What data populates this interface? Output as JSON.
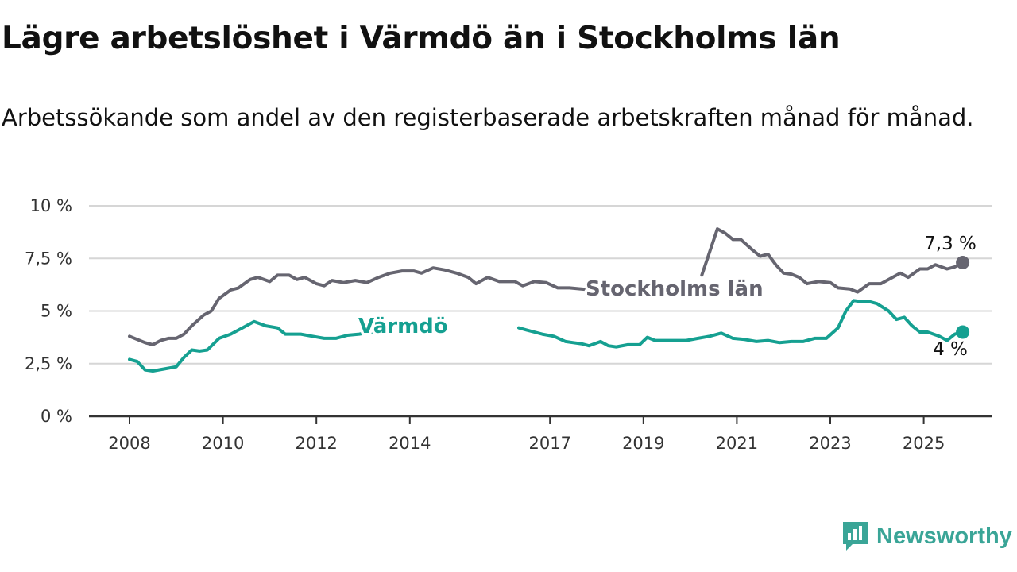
{
  "header": {
    "title": "Lägre arbetslöshet i Värmdö än i Stockholms län",
    "subtitle": "Arbetssökande som andel av den registerbaserade arbetskraften månad för månad."
  },
  "brand": {
    "name": "Newsworthy",
    "color": "#3aa597",
    "icon": "newsworthy-logo-icon"
  },
  "chart_data": {
    "type": "line",
    "x_range": [
      "2008-01",
      "2025-12"
    ],
    "ylim": [
      0,
      10
    ],
    "grid": true,
    "y_ticks": [
      {
        "value": 0,
        "label": "0 %"
      },
      {
        "value": 2.5,
        "label": "2,5 %"
      },
      {
        "value": 5,
        "label": "5 %"
      },
      {
        "value": 7.5,
        "label": "7,5 %"
      },
      {
        "value": 10,
        "label": "10 %"
      }
    ],
    "x_ticks": [
      {
        "value": "2008-01",
        "label": "2008"
      },
      {
        "value": "2010-01",
        "label": "2010"
      },
      {
        "value": "2012-01",
        "label": "2012"
      },
      {
        "value": "2014-01",
        "label": "2014"
      },
      {
        "value": "2017-01",
        "label": "2017"
      },
      {
        "value": "2019-01",
        "label": "2019"
      },
      {
        "value": "2021-01",
        "label": "2021"
      },
      {
        "value": "2023-01",
        "label": "2023"
      },
      {
        "value": "2025-01",
        "label": "2025"
      }
    ],
    "series": [
      {
        "name": "Stockholms län",
        "color": "#666570",
        "end_label": "7,3 %",
        "points": [
          [
            "2008-01",
            3.8
          ],
          [
            "2008-05",
            3.5
          ],
          [
            "2008-07",
            3.4
          ],
          [
            "2008-09",
            3.6
          ],
          [
            "2008-11",
            3.7
          ],
          [
            "2009-01",
            3.7
          ],
          [
            "2009-03",
            3.9
          ],
          [
            "2009-05",
            4.3
          ],
          [
            "2009-08",
            4.8
          ],
          [
            "2009-10",
            5.0
          ],
          [
            "2009-12",
            5.6
          ],
          [
            "2010-03",
            6.0
          ],
          [
            "2010-05",
            6.1
          ],
          [
            "2010-08",
            6.5
          ],
          [
            "2010-10",
            6.6
          ],
          [
            "2011-01",
            6.4
          ],
          [
            "2011-03",
            6.7
          ],
          [
            "2011-06",
            6.7
          ],
          [
            "2011-08",
            6.5
          ],
          [
            "2011-10",
            6.6
          ],
          [
            "2012-01",
            6.3
          ],
          [
            "2012-03",
            6.2
          ],
          [
            "2012-05",
            6.45
          ],
          [
            "2012-08",
            6.35
          ],
          [
            "2012-11",
            6.45
          ],
          [
            "2013-02",
            6.35
          ],
          [
            "2013-05",
            6.6
          ],
          [
            "2013-08",
            6.8
          ],
          [
            "2013-11",
            6.9
          ],
          [
            "2014-02",
            6.9
          ],
          [
            "2014-04",
            6.8
          ],
          [
            "2014-07",
            7.05
          ],
          [
            "2014-10",
            6.95
          ],
          [
            "2015-01",
            6.8
          ],
          [
            "2015-04",
            6.6
          ],
          [
            "2015-06",
            6.3
          ],
          [
            "2015-09",
            6.6
          ],
          [
            "2015-12",
            6.4
          ],
          [
            "2016-04",
            6.4
          ],
          [
            "2016-06",
            6.2
          ],
          [
            "2016-09",
            6.4
          ],
          [
            "2016-12",
            6.35
          ],
          [
            "2017-03",
            6.1
          ],
          [
            "2017-06",
            6.1
          ],
          [
            "2017-09",
            6.05
          ],
          [
            "2017-12",
            6.0
          ],
          [
            "2018-03",
            6.1
          ],
          [
            "2018-06",
            6.0
          ],
          [
            "2018-09",
            6.1
          ],
          [
            "2018-10",
            6.1
          ]
        ],
        "points_b": [
          [
            "2020-04",
            6.7
          ],
          [
            "2020-06",
            7.8
          ],
          [
            "2020-08",
            8.9
          ],
          [
            "2020-10",
            8.7
          ],
          [
            "2020-12",
            8.4
          ],
          [
            "2021-02",
            8.4
          ],
          [
            "2021-05",
            7.9
          ],
          [
            "2021-07",
            7.6
          ],
          [
            "2021-09",
            7.7
          ],
          [
            "2021-11",
            7.2
          ],
          [
            "2022-01",
            6.8
          ],
          [
            "2022-03",
            6.75
          ],
          [
            "2022-05",
            6.6
          ],
          [
            "2022-07",
            6.3
          ],
          [
            "2022-10",
            6.4
          ],
          [
            "2023-01",
            6.35
          ],
          [
            "2023-03",
            6.1
          ],
          [
            "2023-06",
            6.05
          ],
          [
            "2023-08",
            5.9
          ],
          [
            "2023-11",
            6.3
          ],
          [
            "2024-02",
            6.3
          ],
          [
            "2024-05",
            6.6
          ],
          [
            "2024-07",
            6.8
          ],
          [
            "2024-09",
            6.6
          ],
          [
            "2024-12",
            7.0
          ],
          [
            "2025-02",
            7.0
          ],
          [
            "2025-04",
            7.2
          ],
          [
            "2025-07",
            7.0
          ],
          [
            "2025-09",
            7.1
          ],
          [
            "2025-11",
            7.3
          ]
        ]
      },
      {
        "name": "Värmdö",
        "color": "#15a091",
        "end_label": "4 %",
        "points": [
          [
            "2008-01",
            2.7
          ],
          [
            "2008-03",
            2.6
          ],
          [
            "2008-05",
            2.2
          ],
          [
            "2008-07",
            2.15
          ],
          [
            "2008-10",
            2.25
          ],
          [
            "2009-01",
            2.35
          ],
          [
            "2009-03",
            2.8
          ],
          [
            "2009-05",
            3.15
          ],
          [
            "2009-07",
            3.1
          ],
          [
            "2009-09",
            3.15
          ],
          [
            "2009-12",
            3.7
          ],
          [
            "2010-03",
            3.9
          ],
          [
            "2010-06",
            4.2
          ],
          [
            "2010-09",
            4.5
          ],
          [
            "2010-12",
            4.3
          ],
          [
            "2011-03",
            4.2
          ],
          [
            "2011-05",
            3.9
          ],
          [
            "2011-09",
            3.9
          ],
          [
            "2011-12",
            3.8
          ],
          [
            "2012-03",
            3.7
          ],
          [
            "2012-06",
            3.7
          ],
          [
            "2012-09",
            3.85
          ],
          [
            "2012-12",
            3.9
          ],
          [
            "2013-03",
            4.0
          ],
          [
            "2013-06",
            4.05
          ],
          [
            "2013-08",
            4.2
          ]
        ],
        "points_b": [
          [
            "2016-05",
            4.2
          ],
          [
            "2016-07",
            4.1
          ],
          [
            "2016-09",
            4.0
          ],
          [
            "2016-11",
            3.9
          ],
          [
            "2017-02",
            3.8
          ],
          [
            "2017-05",
            3.55
          ],
          [
            "2017-07",
            3.5
          ],
          [
            "2017-09",
            3.45
          ],
          [
            "2017-11",
            3.35
          ],
          [
            "2018-02",
            3.55
          ],
          [
            "2018-04",
            3.35
          ],
          [
            "2018-06",
            3.3
          ],
          [
            "2018-09",
            3.4
          ],
          [
            "2018-12",
            3.4
          ],
          [
            "2019-02",
            3.75
          ],
          [
            "2019-04",
            3.6
          ],
          [
            "2019-06",
            3.6
          ],
          [
            "2019-09",
            3.6
          ],
          [
            "2019-12",
            3.6
          ],
          [
            "2020-03",
            3.7
          ],
          [
            "2020-06",
            3.8
          ],
          [
            "2020-09",
            3.95
          ],
          [
            "2020-12",
            3.7
          ],
          [
            "2021-03",
            3.65
          ],
          [
            "2021-06",
            3.55
          ],
          [
            "2021-09",
            3.6
          ],
          [
            "2021-12",
            3.5
          ],
          [
            "2022-03",
            3.55
          ],
          [
            "2022-06",
            3.55
          ],
          [
            "2022-09",
            3.7
          ],
          [
            "2022-12",
            3.7
          ],
          [
            "2023-03",
            4.2
          ],
          [
            "2023-05",
            5.0
          ],
          [
            "2023-07",
            5.5
          ],
          [
            "2023-09",
            5.45
          ],
          [
            "2023-11",
            5.45
          ],
          [
            "2024-01",
            5.35
          ],
          [
            "2024-04",
            5.0
          ],
          [
            "2024-06",
            4.6
          ],
          [
            "2024-08",
            4.7
          ],
          [
            "2024-10",
            4.3
          ],
          [
            "2024-12",
            4.0
          ],
          [
            "2025-02",
            4.0
          ],
          [
            "2025-05",
            3.8
          ],
          [
            "2025-07",
            3.6
          ],
          [
            "2025-09",
            3.9
          ],
          [
            "2025-11",
            4.0
          ]
        ]
      }
    ]
  }
}
